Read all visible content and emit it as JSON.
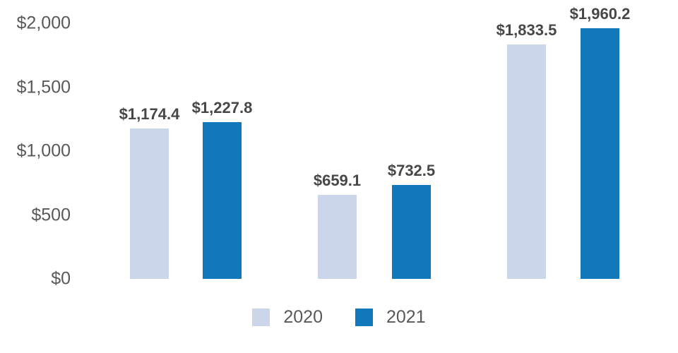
{
  "chart_data": {
    "type": "bar",
    "categories": [
      "",
      "",
      ""
    ],
    "series": [
      {
        "name": "2020",
        "color": "#ccd6ea",
        "values": [
          1174.4,
          659.1,
          1833.5
        ],
        "value_labels": [
          "$1,174.4",
          "$659.1",
          "$1,833.5"
        ]
      },
      {
        "name": "2021",
        "color": "#1278bc",
        "values": [
          1227.8,
          732.5,
          1960.2
        ],
        "value_labels": [
          "$1,227.8",
          "$732.5",
          "$1,960.2"
        ]
      }
    ],
    "ylim": [
      0,
      2000
    ],
    "ytick_values": [
      0,
      500,
      1000,
      1500,
      2000
    ],
    "ytick_labels": [
      "$0",
      "$500",
      "$1,000",
      "$1,500",
      "$2,000"
    ],
    "grid": false,
    "axis_lines": false,
    "legend_position": "bottom",
    "value_label_position": "above-bar"
  },
  "colors": {
    "background": "#ffffff",
    "axis_label": "#595959",
    "value_label": "#474747",
    "series_2020": "#ccd6ea",
    "series_2021": "#1278bc"
  }
}
